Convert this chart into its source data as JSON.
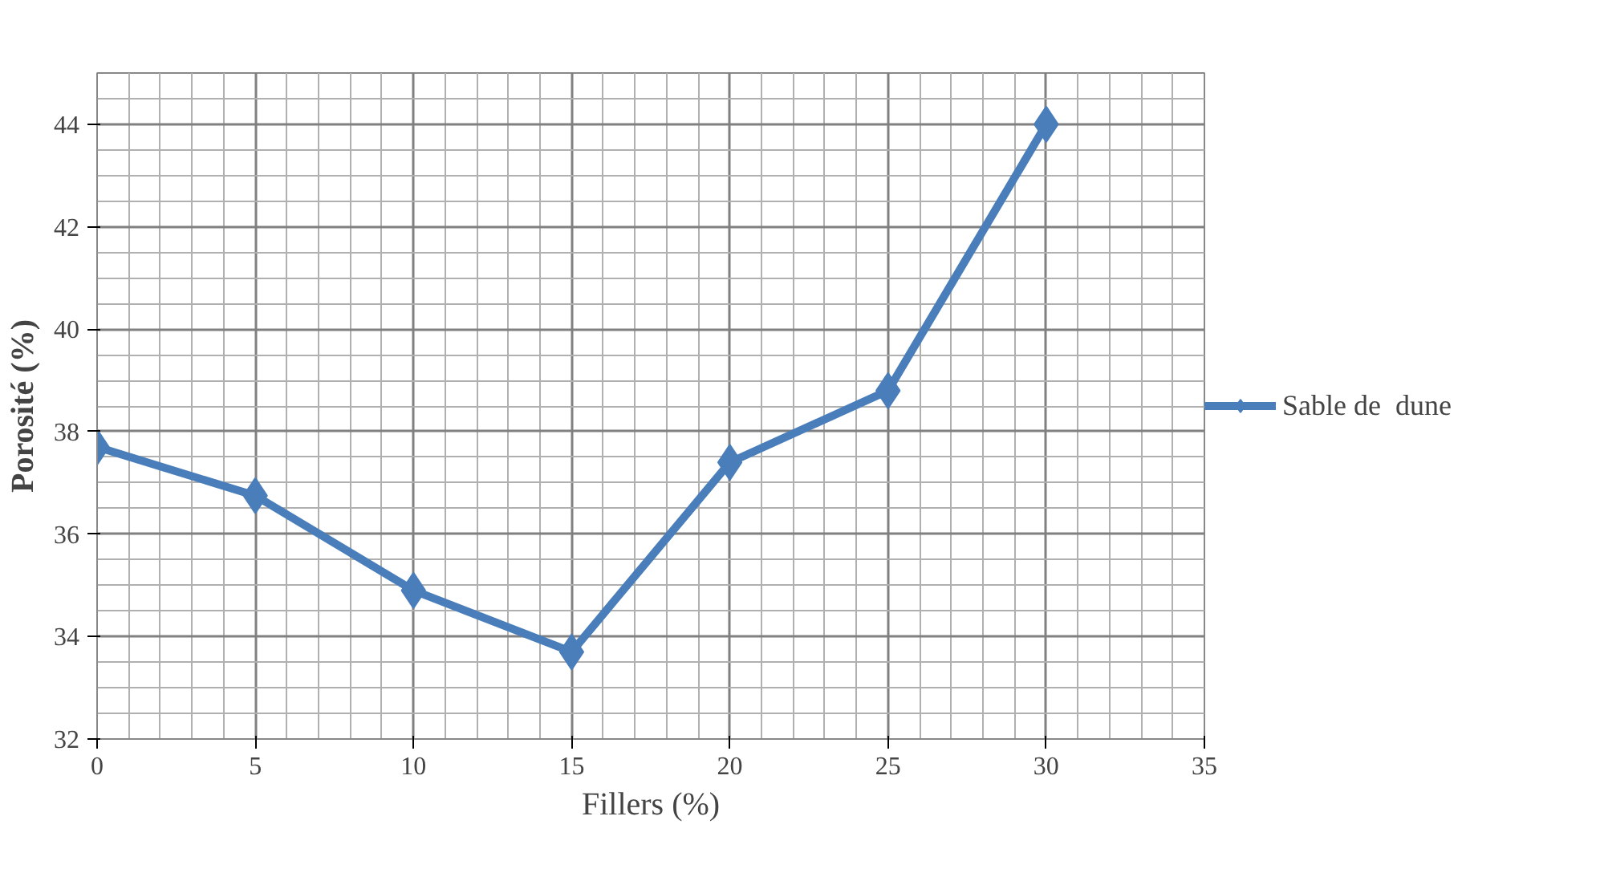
{
  "chart_data": {
    "type": "line",
    "xlabel": "Fillers (%)",
    "ylabel": "Porosité (%)",
    "x": [
      0,
      5,
      10,
      15,
      20,
      25,
      30
    ],
    "series": [
      {
        "name": "Sable de  dune",
        "color": "#4a7ebb",
        "values": [
          37.7,
          36.75,
          34.9,
          33.7,
          37.4,
          38.8,
          44.0
        ]
      }
    ],
    "xlim": [
      0,
      35
    ],
    "xticks": [
      0,
      5,
      10,
      15,
      20,
      25,
      30,
      35
    ],
    "ylim": [
      32,
      45
    ],
    "yticks": [
      32,
      34,
      36,
      38,
      40,
      42,
      44
    ],
    "grid": true,
    "legend": "right",
    "marker": "diamond",
    "line_style": "solid"
  }
}
